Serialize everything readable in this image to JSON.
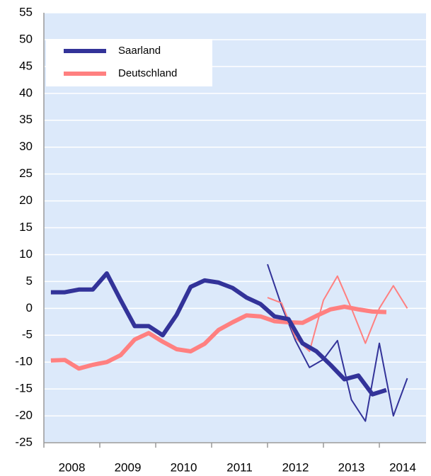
{
  "chart_data": {
    "type": "line",
    "xlim": [
      2008,
      2014.835
    ],
    "xticks": [
      2008,
      2009,
      2010,
      2011,
      2012,
      2013,
      2014
    ],
    "ylim": [
      -25,
      55
    ],
    "yticks": [
      -25,
      -20,
      -15,
      -10,
      -5,
      0,
      5,
      10,
      15,
      20,
      25,
      30,
      35,
      40,
      45,
      50,
      55
    ],
    "grid": true,
    "legend": "upper left",
    "series": [
      {
        "name": "Saarland",
        "color": "#333399",
        "width": 6,
        "x": [
          2008.125,
          2008.375,
          2008.625,
          2008.875,
          2009.125,
          2009.375,
          2009.625,
          2009.875,
          2010.125,
          2010.375,
          2010.625,
          2010.875,
          2011.125,
          2011.375,
          2011.625,
          2011.875,
          2012.125,
          2012.375,
          2012.625,
          2012.875,
          2013.125,
          2013.375,
          2013.625,
          2013.875,
          2014.125
        ],
        "values": [
          3,
          3,
          3.5,
          3.5,
          6.5,
          1.5,
          -3.3,
          -3.3,
          -5,
          -1.2,
          4,
          5.2,
          4.8,
          3.8,
          2,
          0.8,
          -1.5,
          -2,
          -6.5,
          -8,
          -10.5,
          -13.2,
          -12.5,
          -16,
          -15.2
        ]
      },
      {
        "name": "Deutschland",
        "color": "#ff8080",
        "width": 6,
        "x": [
          2008.125,
          2008.375,
          2008.625,
          2008.875,
          2009.125,
          2009.375,
          2009.625,
          2009.875,
          2010.125,
          2010.375,
          2010.625,
          2010.875,
          2011.125,
          2011.375,
          2011.625,
          2011.875,
          2012.125,
          2012.375,
          2012.625,
          2012.875,
          2013.125,
          2013.375,
          2013.625,
          2013.875,
          2014.125
        ],
        "values": [
          -9.7,
          -9.6,
          -11.2,
          -10.5,
          -10,
          -8.7,
          -5.8,
          -4.6,
          -6.2,
          -7.6,
          -8,
          -6.6,
          -4,
          -2.6,
          -1.3,
          -1.5,
          -2.4,
          -2.6,
          -2.7,
          -1.4,
          -0.2,
          0.3,
          -0.2,
          -0.6,
          -0.7
        ]
      },
      {
        "color": "#333399",
        "width": 2,
        "x": [
          2012,
          2012.25,
          2012.5,
          2012.75,
          2013,
          2013.25,
          2013.5,
          2013.75,
          2014,
          2014.25,
          2014.5
        ],
        "values": [
          8.2,
          0.5,
          -6,
          -11,
          -9.5,
          -6,
          -17,
          -21,
          -6.5,
          -20,
          -13
        ]
      },
      {
        "color": "#ff8080",
        "width": 2,
        "x": [
          2012,
          2012.25,
          2012.5,
          2012.75,
          2013,
          2013.25,
          2013.5,
          2013.75,
          2014,
          2014.25,
          2014.5
        ],
        "values": [
          2,
          1,
          -5.5,
          -8,
          1.5,
          6,
          0,
          -6.5,
          0,
          4.2,
          0
        ]
      }
    ]
  }
}
